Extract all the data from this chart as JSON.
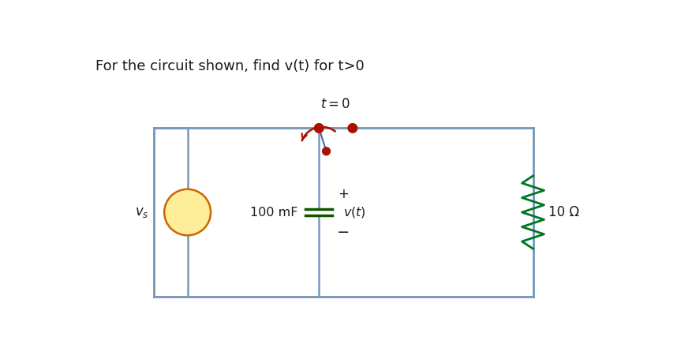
{
  "title": "For the circuit shown, find v(t) for t>0",
  "title_fontsize": 13,
  "bg_color": "#ffffff",
  "box_color": "#7799bb",
  "source_color_edge": "#cc6600",
  "source_color_face": "#ffee99",
  "switch_color": "#aa1100",
  "wire_color": "#7799bb",
  "resistor_color": "#007722",
  "text_color": "#1a1a1a",
  "cap_color": "#115500",
  "node_color": "#aa1100",
  "vs_label": "$v_s$",
  "cap_label": "100 mF",
  "vt_label": "$v(t)$",
  "res_label": "10 Ω",
  "switch_label": "$t=0$"
}
